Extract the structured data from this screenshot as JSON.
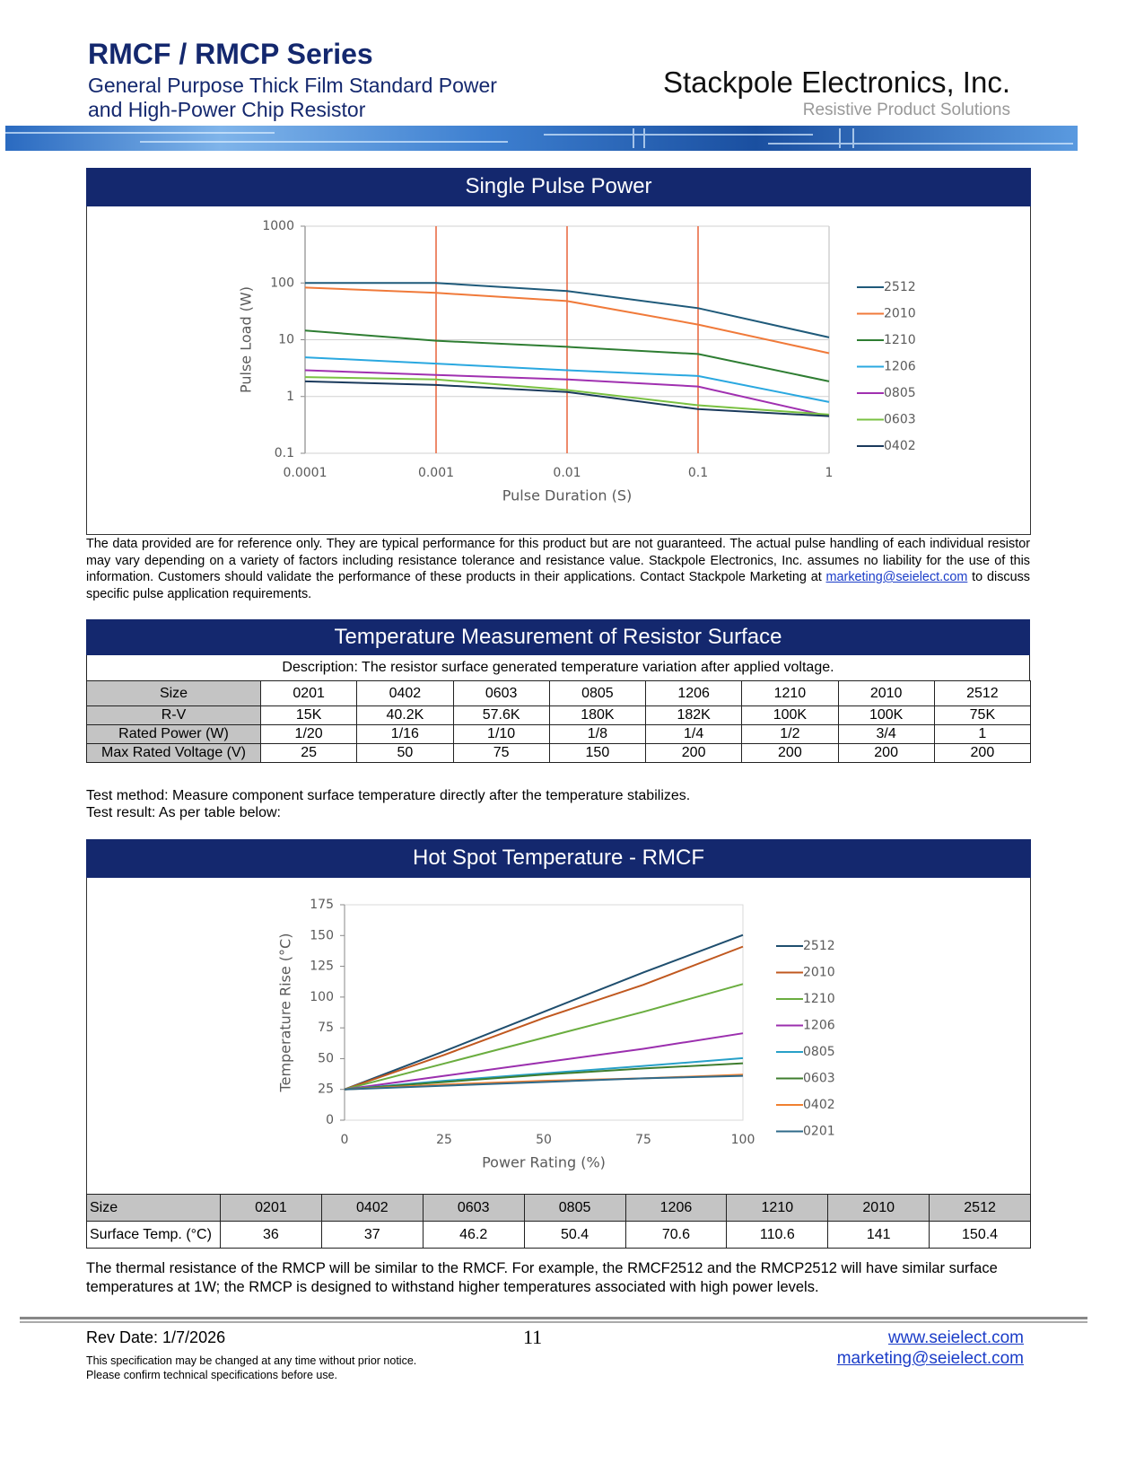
{
  "header": {
    "title": "RMCF / RMCP Series",
    "subtitle": [
      "General Purpose Thick Film Standard Power",
      "and High-Power Chip Resistor"
    ],
    "company": "Stackpole Electronics, Inc.",
    "tagline": "Resistive Product Solutions"
  },
  "chart_data": [
    {
      "type": "line",
      "title": "Single Pulse Power",
      "x_label": "Pulse Duration (S)",
      "y_label": "Pulse Load (W)",
      "log_x": true,
      "log_y": true,
      "grid": true,
      "xgrid_color": "#e8643c",
      "x": [
        0.0001,
        0.001,
        0.01,
        0.1,
        1
      ],
      "xlim": [
        0.0001,
        1
      ],
      "xticks": [
        0.0001,
        0.001,
        0.01,
        0.1,
        1
      ],
      "ylim": [
        0.1,
        1000
      ],
      "yticks": [
        0.1,
        1,
        10,
        100,
        1000
      ],
      "series": [
        {
          "name": "2512",
          "color": "#1f5a7a",
          "values": [
            100,
            100,
            72,
            36,
            11
          ]
        },
        {
          "name": "2010",
          "color": "#f07a3a",
          "values": [
            83,
            67,
            48,
            18.5,
            5.8
          ]
        },
        {
          "name": "1210",
          "color": "#2e7d32",
          "values": [
            14.5,
            9.6,
            7.5,
            5.6,
            1.85
          ]
        },
        {
          "name": "1206",
          "color": "#2aa8e0",
          "values": [
            4.9,
            3.8,
            2.9,
            2.3,
            0.8
          ]
        },
        {
          "name": "0805",
          "color": "#a030b0",
          "values": [
            2.9,
            2.4,
            2,
            1.5,
            0.45
          ]
        },
        {
          "name": "0603",
          "color": "#7ac142",
          "values": [
            2.2,
            2,
            1.3,
            0.7,
            0.48
          ]
        },
        {
          "name": "0402",
          "color": "#1a3a5c",
          "values": [
            1.85,
            1.6,
            1.2,
            0.6,
            0.45
          ]
        }
      ]
    },
    {
      "type": "line",
      "title": "Hot Spot Temperature - RMCF",
      "x_label": "Power Rating (%)",
      "y_label": "Temperature Rise (°C)",
      "log_x": false,
      "log_y": false,
      "grid": false,
      "x": [
        0,
        25,
        50,
        75,
        100
      ],
      "xlim": [
        0,
        100
      ],
      "xticks": [
        0,
        25,
        50,
        75,
        100
      ],
      "ylim": [
        0,
        175
      ],
      "yticks": [
        0,
        25,
        50,
        75,
        100,
        125,
        150,
        175
      ],
      "series": [
        {
          "name": "2512",
          "color": "#1f4e6e",
          "values": [
            25,
            56,
            88,
            120,
            150.4
          ]
        },
        {
          "name": "2010",
          "color": "#c0581f",
          "values": [
            25,
            53,
            83,
            110,
            141
          ]
        },
        {
          "name": "1210",
          "color": "#6aad3f",
          "values": [
            25,
            46,
            67,
            88,
            110.6
          ]
        },
        {
          "name": "1206",
          "color": "#9b2fae",
          "values": [
            25,
            36,
            47,
            58,
            70.6
          ]
        },
        {
          "name": "0805",
          "color": "#27a0c8",
          "values": [
            25,
            32,
            38,
            44,
            50.4
          ]
        },
        {
          "name": "0603",
          "color": "#3f7d2e",
          "values": [
            25,
            31,
            37,
            42,
            46.2
          ]
        },
        {
          "name": "0402",
          "color": "#f08030",
          "values": [
            25,
            29,
            32,
            34,
            37
          ]
        },
        {
          "name": "0201",
          "color": "#2f6a8a",
          "values": [
            25,
            28,
            31,
            34,
            36
          ]
        }
      ]
    }
  ],
  "disclaimer": {
    "text": "The data provided are for reference only.   They are typical performance for this product but are not guaranteed.  The actual pulse handling of each individual resistor may vary depending on a variety of factors including resistance tolerance and resistance value.  Stackpole Electronics, Inc. assumes no liability for the use of this information.  Customers should validate the performance of these products in their applications.   Contact Stackpole Marketing at ",
    "link": "marketing@seielect.com",
    "after": " to discuss specific pulse application requirements."
  },
  "temperature_table": {
    "title": "Temperature Measurement of Resistor Surface",
    "description": "Description:  The resistor surface generated temperature variation after applied voltage.",
    "rows": [
      [
        "Size",
        "0201",
        "0402",
        "0603",
        "0805",
        "1206",
        "1210",
        "2010",
        "2512"
      ],
      [
        "R-V",
        "15K",
        "40.2K",
        "57.6K",
        "180K",
        "182K",
        "100K",
        "100K",
        "75K"
      ],
      [
        "Rated Power (W)",
        "1/20",
        "1/16",
        "1/10",
        "1/8",
        "1/4",
        "1/2",
        "3/4",
        "1"
      ],
      [
        "Max Rated Voltage (V)",
        "25",
        "50",
        "75",
        "150",
        "200",
        "200",
        "200",
        "200"
      ]
    ]
  },
  "test_method": [
    "Test method: Measure component surface temperature directly after the temperature stabilizes.",
    "Test result: As per table below:"
  ],
  "surface_table": {
    "rows": [
      [
        "Size",
        "0201",
        "0402",
        "0603",
        "0805",
        "1206",
        "1210",
        "2010",
        "2512"
      ],
      [
        "Surface Temp. (°C)",
        "36",
        "37",
        "46.2",
        "50.4",
        "70.6",
        "110.6",
        "141",
        "150.4"
      ]
    ]
  },
  "note": "The thermal resistance of the RMCP will be similar to the RMCF.  For example, the RMCF2512 and the RMCP2512 will have similar surface temperatures at 1W; the RMCP is designed to withstand higher temperatures associated with high power levels.",
  "footer": {
    "rev_date": "Rev Date: 1/7/2026",
    "page": "11",
    "notice": [
      "This specification may be changed at any time without prior notice.",
      "Please confirm technical specifications before use."
    ],
    "website": "www.seielect.com",
    "email": "marketing@seielect.com"
  }
}
